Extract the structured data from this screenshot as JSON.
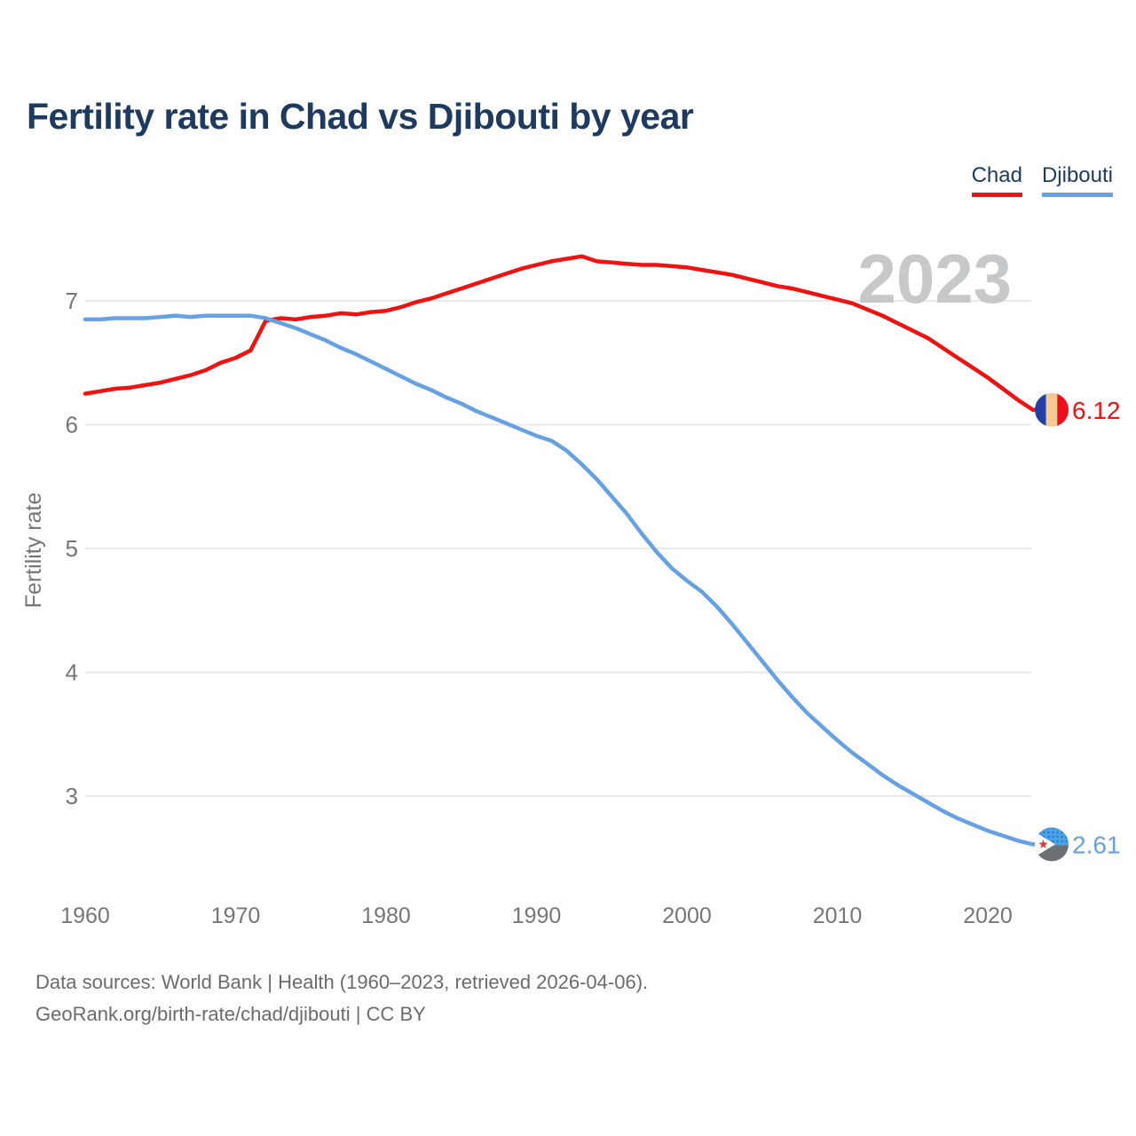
{
  "title": "Fertility rate in Chad vs Djibouti by year",
  "watermark": "2023",
  "legend": {
    "items": [
      {
        "label": "Chad",
        "color": "#f01111"
      },
      {
        "label": "Djibouti",
        "color": "#66a2e3"
      }
    ]
  },
  "footer": {
    "line1": "Data sources: World Bank | Health (1960–2023, retrieved 2026-04-06).",
    "line2": "GeoRank.org/birth-rate/chad/djibouti | CC BY"
  },
  "colors": {
    "title_navy": "#1e3a5f",
    "axis_text": "#767676",
    "grid": "#e9e9e9",
    "watermark_gray": "#c6c8ca",
    "footer_text": "#6b6b6b",
    "chad_flag": {
      "blue": "#2440a5",
      "gold": "#f6c98e",
      "red": "#f20d1e"
    },
    "djibouti_flag": {
      "blue": "#4aa1e8",
      "dot": "#2574bd",
      "bottom": "#6e7173",
      "star": "#e8303c",
      "triangle": "#ffffff"
    }
  },
  "chart_data": {
    "type": "line",
    "title": "Fertility rate in Chad vs Djibouti by year",
    "xlabel": "",
    "ylabel": "Fertility rate",
    "x_ticks": [
      1960,
      1970,
      1980,
      1990,
      2000,
      2010,
      2020
    ],
    "y_ticks": [
      3,
      4,
      5,
      6,
      7
    ],
    "xlim": [
      1960,
      2023
    ],
    "ylim": [
      2.4,
      7.6
    ],
    "grid": "horizontal",
    "legend_position": "top-right",
    "x": [
      1960,
      1961,
      1962,
      1963,
      1964,
      1965,
      1966,
      1967,
      1968,
      1969,
      1970,
      1971,
      1972,
      1973,
      1974,
      1975,
      1976,
      1977,
      1978,
      1979,
      1980,
      1981,
      1982,
      1983,
      1984,
      1985,
      1986,
      1987,
      1988,
      1989,
      1990,
      1991,
      1992,
      1993,
      1994,
      1995,
      1996,
      1997,
      1998,
      1999,
      2000,
      2001,
      2002,
      2003,
      2004,
      2005,
      2006,
      2007,
      2008,
      2009,
      2010,
      2011,
      2012,
      2013,
      2014,
      2015,
      2016,
      2017,
      2018,
      2019,
      2020,
      2021,
      2022,
      2023
    ],
    "series": [
      {
        "id": "chad",
        "name": "Chad",
        "color": "#f01111",
        "end_label": "6.12",
        "end_value": 6.12,
        "end_icon": "chad-flag-icon",
        "values": [
          6.25,
          6.27,
          6.29,
          6.3,
          6.32,
          6.34,
          6.37,
          6.4,
          6.44,
          6.5,
          6.54,
          6.6,
          6.84,
          6.86,
          6.85,
          6.87,
          6.88,
          6.9,
          6.89,
          6.91,
          6.92,
          6.95,
          6.99,
          7.02,
          7.06,
          7.1,
          7.14,
          7.18,
          7.22,
          7.26,
          7.29,
          7.32,
          7.34,
          7.36,
          7.32,
          7.31,
          7.3,
          7.29,
          7.29,
          7.28,
          7.27,
          7.25,
          7.23,
          7.21,
          7.18,
          7.15,
          7.12,
          7.1,
          7.07,
          7.04,
          7.01,
          6.98,
          6.93,
          6.88,
          6.82,
          6.76,
          6.7,
          6.62,
          6.54,
          6.46,
          6.38,
          6.29,
          6.2,
          6.12
        ]
      },
      {
        "id": "djibouti",
        "name": "Djibouti",
        "color": "#66a2e3",
        "end_label": "2.61",
        "end_value": 2.61,
        "end_icon": "djibouti-flag-icon",
        "values": [
          6.85,
          6.85,
          6.86,
          6.86,
          6.86,
          6.87,
          6.88,
          6.87,
          6.88,
          6.88,
          6.88,
          6.88,
          6.86,
          6.82,
          6.78,
          6.73,
          6.68,
          6.62,
          6.57,
          6.51,
          6.45,
          6.39,
          6.33,
          6.28,
          6.22,
          6.17,
          6.11,
          6.06,
          6.01,
          5.96,
          5.91,
          5.87,
          5.79,
          5.68,
          5.56,
          5.42,
          5.28,
          5.12,
          4.97,
          4.84,
          4.74,
          4.65,
          4.53,
          4.39,
          4.24,
          4.09,
          3.94,
          3.8,
          3.67,
          3.56,
          3.45,
          3.35,
          3.26,
          3.17,
          3.09,
          3.02,
          2.95,
          2.88,
          2.82,
          2.77,
          2.72,
          2.68,
          2.64,
          2.61
        ]
      }
    ]
  }
}
